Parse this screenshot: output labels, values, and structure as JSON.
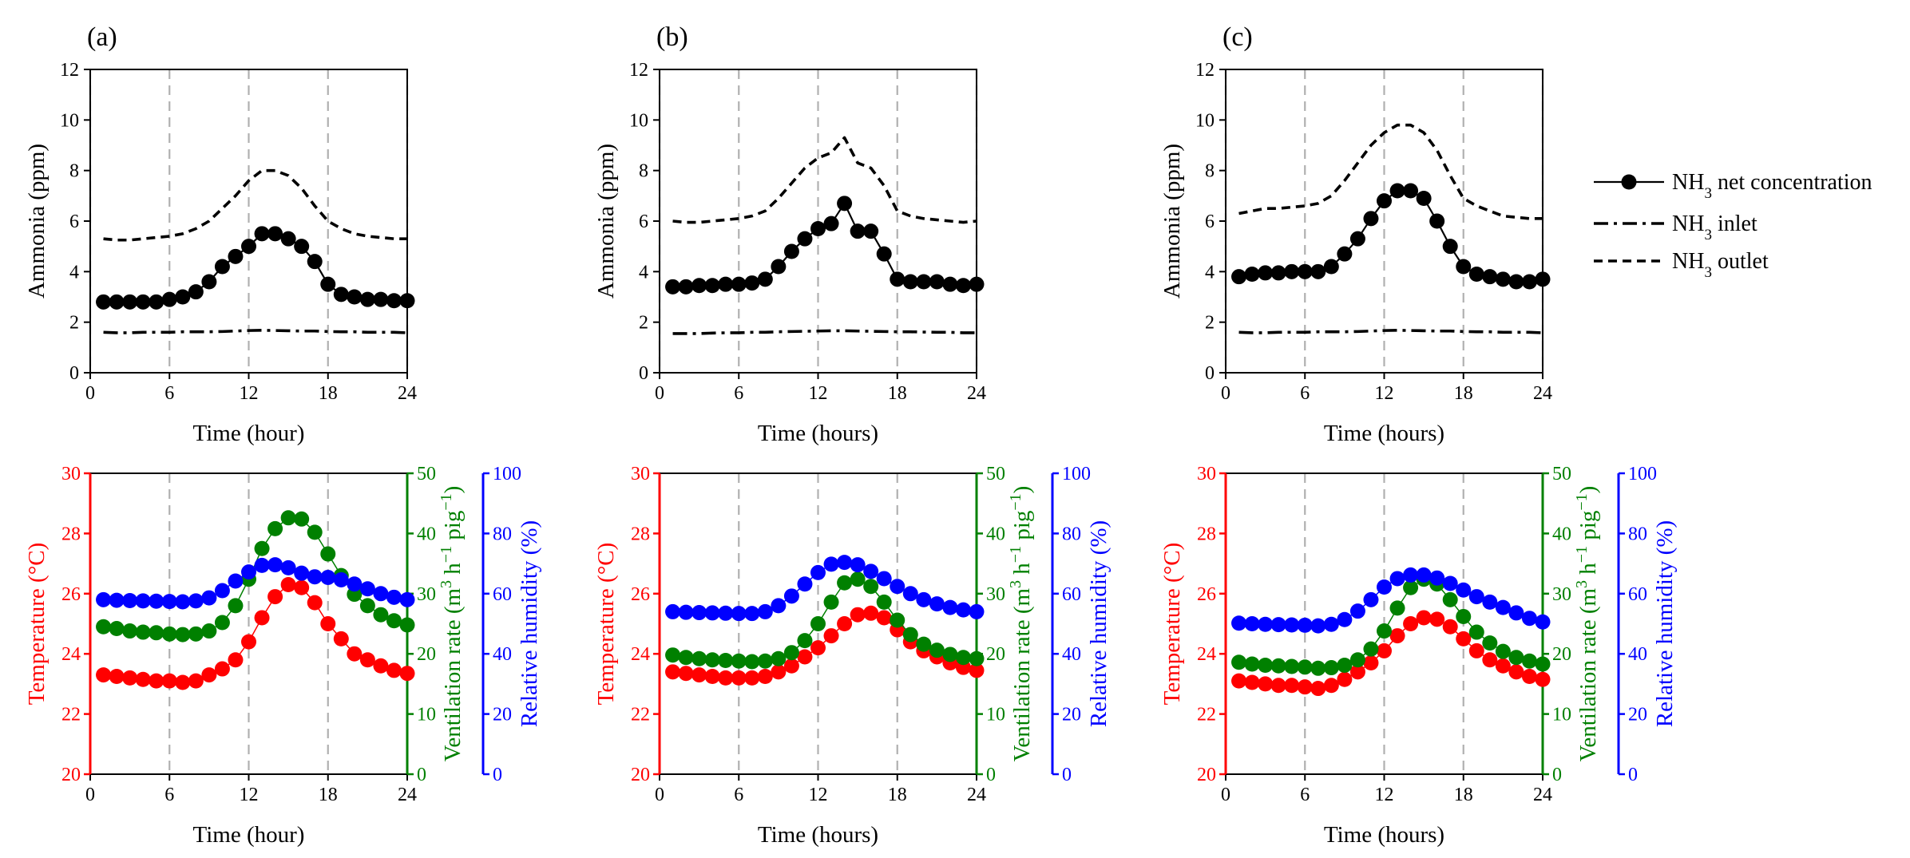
{
  "figure": {
    "legend": [
      {
        "key": "net",
        "label": "NH₃ net concentration"
      },
      {
        "key": "inlet",
        "label": "NH₃ inlet"
      },
      {
        "key": "outlet",
        "label": "NH₃ outlet"
      }
    ]
  },
  "colors": {
    "temperature": "#ff0000",
    "ventilation": "#008000",
    "humidity": "#0000ff",
    "ammonia": "#000000",
    "grid": "#b0b0b0"
  },
  "chart_data": [
    {
      "panel": "(a)",
      "type": "line",
      "xlabel": "Time (hour)",
      "ylabel": "Ammonia (ppm)",
      "xlim": [
        0,
        24
      ],
      "xticks": [
        0,
        6,
        12,
        18,
        24
      ],
      "ylim": [
        0,
        12
      ],
      "yticks": [
        0,
        2,
        4,
        6,
        8,
        10,
        12
      ],
      "grid": "vertical dashed at x = 0, 6, 12, 18, 24",
      "x": [
        1,
        2,
        3,
        4,
        5,
        6,
        7,
        8,
        9,
        10,
        11,
        12,
        13,
        14,
        15,
        16,
        17,
        18,
        19,
        20,
        21,
        22,
        23,
        24
      ],
      "series": [
        {
          "key": "net",
          "name": "NH₃ net concentration",
          "style": "solid line with filled circles",
          "values": [
            2.8,
            2.8,
            2.8,
            2.8,
            2.8,
            2.9,
            3.0,
            3.2,
            3.6,
            4.2,
            4.6,
            5.0,
            5.5,
            5.5,
            5.3,
            5.0,
            4.4,
            3.5,
            3.1,
            3.0,
            2.9,
            2.9,
            2.85,
            2.85
          ]
        },
        {
          "key": "inlet",
          "name": "NH₃ inlet",
          "style": "dash-dot",
          "values": [
            1.6,
            1.58,
            1.58,
            1.6,
            1.6,
            1.6,
            1.62,
            1.62,
            1.62,
            1.63,
            1.65,
            1.67,
            1.68,
            1.67,
            1.66,
            1.65,
            1.65,
            1.63,
            1.62,
            1.62,
            1.6,
            1.6,
            1.6,
            1.58
          ]
        },
        {
          "key": "outlet",
          "name": "NH₃ outlet",
          "style": "dashed",
          "values": [
            5.3,
            5.25,
            5.25,
            5.3,
            5.35,
            5.4,
            5.5,
            5.7,
            6.0,
            6.5,
            7.0,
            7.6,
            8.0,
            8.0,
            7.8,
            7.3,
            6.6,
            6.0,
            5.7,
            5.5,
            5.4,
            5.35,
            5.3,
            5.3
          ]
        }
      ]
    },
    {
      "panel": "(b)",
      "type": "line",
      "xlabel": "Time (hours)",
      "ylabel": "Ammonia (ppm)",
      "xlim": [
        0,
        24
      ],
      "xticks": [
        0,
        6,
        12,
        18,
        24
      ],
      "ylim": [
        0,
        12
      ],
      "yticks": [
        0,
        2,
        4,
        6,
        8,
        10,
        12
      ],
      "grid": "vertical dashed at x = 0, 6, 12, 18, 24",
      "x": [
        1,
        2,
        3,
        4,
        5,
        6,
        7,
        8,
        9,
        10,
        11,
        12,
        13,
        14,
        15,
        16,
        17,
        18,
        19,
        20,
        21,
        22,
        23,
        24
      ],
      "series": [
        {
          "key": "net",
          "name": "NH₃ net concentration",
          "style": "solid line with filled circles",
          "values": [
            3.4,
            3.4,
            3.45,
            3.45,
            3.5,
            3.5,
            3.55,
            3.7,
            4.2,
            4.8,
            5.3,
            5.7,
            5.9,
            6.7,
            5.6,
            5.6,
            4.7,
            3.7,
            3.6,
            3.6,
            3.6,
            3.5,
            3.45,
            3.5
          ]
        },
        {
          "key": "inlet",
          "name": "NH₃ inlet",
          "style": "dash-dot",
          "values": [
            1.55,
            1.55,
            1.55,
            1.57,
            1.58,
            1.58,
            1.6,
            1.6,
            1.62,
            1.63,
            1.64,
            1.65,
            1.66,
            1.66,
            1.65,
            1.64,
            1.63,
            1.62,
            1.62,
            1.61,
            1.6,
            1.6,
            1.58,
            1.58
          ]
        },
        {
          "key": "outlet",
          "name": "NH₃ outlet",
          "style": "dashed",
          "values": [
            6.0,
            5.95,
            5.95,
            6.0,
            6.05,
            6.1,
            6.2,
            6.4,
            6.9,
            7.5,
            8.1,
            8.5,
            8.7,
            9.3,
            8.3,
            8.1,
            7.4,
            6.4,
            6.2,
            6.1,
            6.05,
            6.0,
            5.95,
            6.0
          ]
        }
      ]
    },
    {
      "panel": "(c)",
      "type": "line",
      "xlabel": "Time (hours)",
      "ylabel": "Ammonia (ppm)",
      "xlim": [
        0,
        24
      ],
      "xticks": [
        0,
        6,
        12,
        18,
        24
      ],
      "ylim": [
        0,
        12
      ],
      "yticks": [
        0,
        2,
        4,
        6,
        8,
        10,
        12
      ],
      "grid": "vertical dashed at x = 0, 6, 12, 18, 24",
      "x": [
        1,
        2,
        3,
        4,
        5,
        6,
        7,
        8,
        9,
        10,
        11,
        12,
        13,
        14,
        15,
        16,
        17,
        18,
        19,
        20,
        21,
        22,
        23,
        24
      ],
      "series": [
        {
          "key": "net",
          "name": "NH₃ net concentration",
          "style": "solid line with filled circles",
          "values": [
            3.8,
            3.9,
            3.95,
            3.95,
            4.0,
            4.0,
            4.0,
            4.2,
            4.7,
            5.3,
            6.1,
            6.8,
            7.2,
            7.2,
            6.9,
            6.0,
            5.0,
            4.2,
            3.9,
            3.8,
            3.7,
            3.6,
            3.6,
            3.7
          ]
        },
        {
          "key": "inlet",
          "name": "NH₃ inlet",
          "style": "dash-dot",
          "values": [
            1.6,
            1.58,
            1.58,
            1.6,
            1.6,
            1.6,
            1.62,
            1.62,
            1.62,
            1.63,
            1.65,
            1.67,
            1.68,
            1.67,
            1.66,
            1.65,
            1.65,
            1.63,
            1.62,
            1.62,
            1.6,
            1.6,
            1.6,
            1.58
          ]
        },
        {
          "key": "outlet",
          "name": "NH₃ outlet",
          "style": "dashed",
          "values": [
            6.3,
            6.4,
            6.5,
            6.5,
            6.55,
            6.6,
            6.7,
            7.0,
            7.6,
            8.3,
            9.0,
            9.5,
            9.8,
            9.8,
            9.5,
            8.8,
            7.8,
            6.9,
            6.6,
            6.4,
            6.2,
            6.15,
            6.1,
            6.1
          ]
        }
      ]
    },
    {
      "panel": "(a) lower",
      "type": "scatter",
      "xlabel": "Time (hour)",
      "xlim": [
        0,
        24
      ],
      "xticks": [
        0,
        6,
        12,
        18,
        24
      ],
      "grid": "vertical dashed at x = 6, 12, 18",
      "axes": [
        {
          "key": "temperature",
          "label": "Temperature (°C)",
          "side": "left",
          "lim": [
            20,
            30
          ],
          "ticks": [
            20,
            22,
            24,
            26,
            28,
            30
          ]
        },
        {
          "key": "ventilation",
          "label": "Ventilation rate (m³ h⁻¹ pig⁻¹)",
          "side": "right",
          "lim": [
            0,
            50
          ],
          "ticks": [
            0,
            10,
            20,
            30,
            40,
            50
          ]
        },
        {
          "key": "humidity",
          "label": "Relative humidity (%)",
          "side": "right-outer",
          "lim": [
            0,
            100
          ],
          "ticks": [
            0,
            20,
            40,
            60,
            80,
            100
          ]
        }
      ],
      "x": [
        1,
        2,
        3,
        4,
        5,
        6,
        7,
        8,
        9,
        10,
        11,
        12,
        13,
        14,
        15,
        16,
        17,
        18,
        19,
        20,
        21,
        22,
        23,
        24
      ],
      "series": [
        {
          "key": "temperature",
          "axis": "temperature",
          "values": [
            23.3,
            23.25,
            23.2,
            23.15,
            23.1,
            23.1,
            23.05,
            23.1,
            23.3,
            23.5,
            23.8,
            24.4,
            25.2,
            25.9,
            26.3,
            26.2,
            25.7,
            25.0,
            24.5,
            24.0,
            23.8,
            23.6,
            23.45,
            23.35
          ]
        },
        {
          "key": "ventilation",
          "axis": "ventilation",
          "values": [
            24.5,
            24.2,
            23.8,
            23.6,
            23.5,
            23.3,
            23.2,
            23.3,
            23.8,
            25.2,
            28.0,
            32.4,
            37.5,
            40.8,
            42.6,
            42.4,
            40.2,
            36.6,
            33.0,
            29.9,
            28.0,
            26.5,
            25.5,
            24.8
          ]
        },
        {
          "key": "humidity",
          "axis": "humidity",
          "values": [
            58.0,
            57.8,
            57.7,
            57.6,
            57.5,
            57.4,
            57.3,
            57.6,
            58.6,
            61.0,
            64.2,
            67.2,
            69.4,
            69.6,
            68.6,
            66.8,
            65.6,
            65.4,
            64.6,
            63.2,
            61.6,
            60.0,
            58.8,
            58.0
          ]
        }
      ]
    },
    {
      "panel": "(b) lower",
      "type": "scatter",
      "xlabel": "Time (hours)",
      "xlim": [
        0,
        24
      ],
      "xticks": [
        0,
        6,
        12,
        18,
        24
      ],
      "grid": "vertical dashed at x = 6, 12, 18",
      "axes": [
        {
          "key": "temperature",
          "label": "Temperature (°C)",
          "side": "left",
          "lim": [
            20,
            30
          ],
          "ticks": [
            20,
            22,
            24,
            26,
            28,
            30
          ]
        },
        {
          "key": "ventilation",
          "label": "Ventilation rate (m³ h⁻¹ pig⁻¹)",
          "side": "right",
          "lim": [
            0,
            50
          ],
          "ticks": [
            0,
            10,
            20,
            30,
            40,
            50
          ]
        },
        {
          "key": "humidity",
          "label": "Relative humidity (%)",
          "side": "right-outer",
          "lim": [
            0,
            100
          ],
          "ticks": [
            0,
            20,
            40,
            60,
            80,
            100
          ]
        }
      ],
      "x": [
        1,
        2,
        3,
        4,
        5,
        6,
        7,
        8,
        9,
        10,
        11,
        12,
        13,
        14,
        15,
        16,
        17,
        18,
        19,
        20,
        21,
        22,
        23,
        24
      ],
      "series": [
        {
          "key": "temperature",
          "axis": "temperature",
          "values": [
            23.4,
            23.35,
            23.3,
            23.25,
            23.2,
            23.2,
            23.2,
            23.25,
            23.4,
            23.6,
            23.9,
            24.2,
            24.6,
            25.0,
            25.3,
            25.35,
            25.2,
            24.8,
            24.4,
            24.1,
            23.9,
            23.7,
            23.55,
            23.45
          ]
        },
        {
          "key": "ventilation",
          "axis": "ventilation",
          "values": [
            19.8,
            19.4,
            19.2,
            19.0,
            18.9,
            18.8,
            18.7,
            18.8,
            19.2,
            20.2,
            22.2,
            25.0,
            28.6,
            31.8,
            32.4,
            31.2,
            28.6,
            25.6,
            23.2,
            21.6,
            20.6,
            19.9,
            19.4,
            19.2
          ]
        },
        {
          "key": "humidity",
          "axis": "humidity",
          "values": [
            54.0,
            53.8,
            53.7,
            53.6,
            53.5,
            53.4,
            53.4,
            54.0,
            56.0,
            59.2,
            63.2,
            67.0,
            69.8,
            70.4,
            69.6,
            67.4,
            65.0,
            62.4,
            60.0,
            58.0,
            56.6,
            55.4,
            54.6,
            54.0
          ]
        }
      ]
    },
    {
      "panel": "(c) lower",
      "type": "scatter",
      "xlabel": "Time (hours)",
      "xlim": [
        0,
        24
      ],
      "xticks": [
        0,
        6,
        12,
        18,
        24
      ],
      "grid": "vertical dashed at x = 6, 12, 18",
      "axes": [
        {
          "key": "temperature",
          "label": "Temperature (°C)",
          "side": "left",
          "lim": [
            20,
            30
          ],
          "ticks": [
            20,
            22,
            24,
            26,
            28,
            30
          ]
        },
        {
          "key": "ventilation",
          "label": "Ventilation rate (m³ h⁻¹ pig⁻¹)",
          "side": "right",
          "lim": [
            0,
            50
          ],
          "ticks": [
            0,
            10,
            20,
            30,
            40,
            50
          ]
        },
        {
          "key": "humidity",
          "label": "Relative humidity (%)",
          "side": "right-outer",
          "lim": [
            0,
            100
          ],
          "ticks": [
            0,
            20,
            40,
            60,
            80,
            100
          ]
        }
      ],
      "x": [
        1,
        2,
        3,
        4,
        5,
        6,
        7,
        8,
        9,
        10,
        11,
        12,
        13,
        14,
        15,
        16,
        17,
        18,
        19,
        20,
        21,
        22,
        23,
        24
      ],
      "series": [
        {
          "key": "temperature",
          "axis": "temperature",
          "values": [
            23.1,
            23.05,
            23.0,
            22.95,
            22.95,
            22.9,
            22.85,
            22.95,
            23.15,
            23.4,
            23.7,
            24.1,
            24.6,
            25.0,
            25.2,
            25.15,
            24.9,
            24.5,
            24.1,
            23.8,
            23.6,
            23.4,
            23.25,
            23.15
          ]
        },
        {
          "key": "ventilation",
          "axis": "ventilation",
          "values": [
            18.6,
            18.3,
            18.1,
            18.0,
            17.9,
            17.8,
            17.6,
            17.7,
            18.1,
            19.0,
            20.8,
            23.8,
            27.6,
            31.0,
            32.4,
            31.6,
            29.0,
            26.2,
            23.6,
            21.8,
            20.4,
            19.4,
            18.8,
            18.3
          ]
        },
        {
          "key": "humidity",
          "axis": "humidity",
          "values": [
            50.2,
            50.0,
            49.8,
            49.7,
            49.6,
            49.5,
            49.3,
            49.8,
            51.4,
            54.2,
            58.0,
            62.2,
            65.0,
            66.2,
            66.2,
            65.2,
            63.4,
            61.2,
            59.0,
            57.2,
            55.4,
            53.6,
            51.8,
            50.6
          ]
        }
      ]
    }
  ]
}
